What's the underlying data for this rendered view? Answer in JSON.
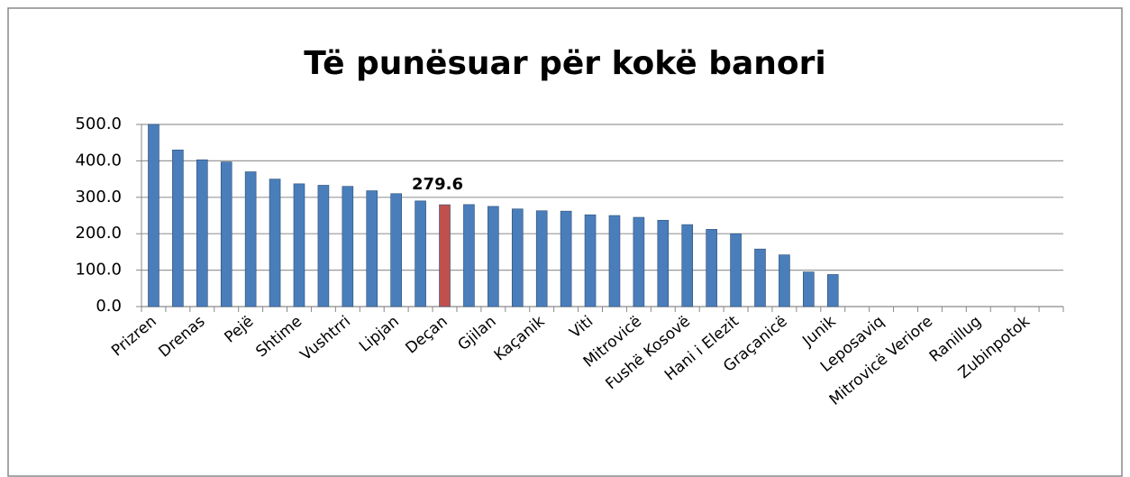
{
  "chart_data": {
    "type": "bar",
    "title": "Të punësuar për kokë banori",
    "categories": [
      "Prizren",
      null,
      "Drenas",
      null,
      "Pejë",
      null,
      "Shtime",
      null,
      "Vushtrri",
      null,
      "Lipjan",
      null,
      "Deçan",
      null,
      "Gjilan",
      null,
      "Kaçanik",
      null,
      "Viti",
      null,
      "Mitrovicë",
      null,
      "Fushë Kosovë",
      null,
      "Hani i Elezit",
      null,
      "Graçanicë",
      null,
      "Junik",
      null,
      "Leposaviq",
      null,
      "Mitrovicë Veriore",
      null,
      "Ranillug",
      null,
      "Zubinpotok",
      null
    ],
    "values": [
      500,
      430,
      403,
      397,
      370,
      350,
      337,
      333,
      330,
      318,
      310,
      290,
      279.6,
      280,
      275,
      268,
      263,
      262,
      252,
      250,
      245,
      237,
      225,
      212,
      200,
      158,
      142,
      95,
      88,
      null,
      null,
      null,
      null,
      null,
      null,
      null,
      null,
      null
    ],
    "color": "#4a7ebb",
    "highlight_index": 12,
    "highlight_color": "#c0504d",
    "ylim": [
      0,
      500
    ],
    "yticks": [
      {
        "value": 0,
        "label": "0.0"
      },
      {
        "value": 100,
        "label": "100.0"
      },
      {
        "value": 200,
        "label": "200.0"
      },
      {
        "value": 300,
        "label": "300.0"
      },
      {
        "value": 400,
        "label": "400.0"
      },
      {
        "value": 500,
        "label": "500.0"
      }
    ],
    "grid": true
  }
}
